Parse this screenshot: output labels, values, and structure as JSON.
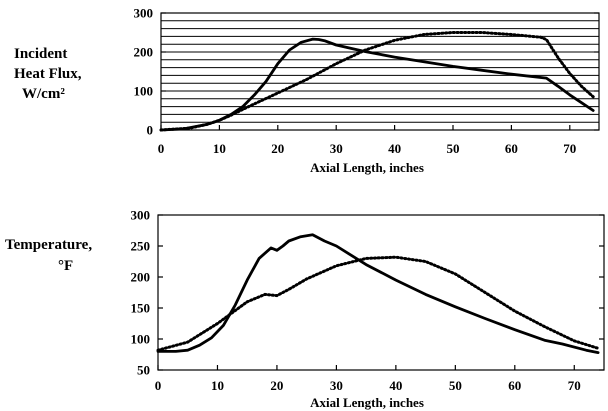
{
  "chart_data": [
    {
      "type": "line",
      "ylabel_lines": [
        "Incident",
        "Heat Flux,",
        "W/cm²"
      ],
      "xlabel": "Axial Length, inches",
      "xlim": [
        0,
        75
      ],
      "ylim": [
        0,
        300
      ],
      "xticks": [
        0,
        10,
        20,
        30,
        40,
        50,
        60,
        70
      ],
      "yticks": [
        0,
        100,
        200,
        300
      ],
      "grid": "horizontal lines every 20",
      "series": [
        {
          "style": "solid",
          "x": [
            0,
            4,
            8,
            10,
            12,
            14,
            16,
            18,
            20,
            22,
            24,
            26,
            27,
            28,
            30,
            35,
            40,
            45,
            50,
            55,
            60,
            66,
            68,
            70,
            72,
            74
          ],
          "y": [
            0,
            3,
            15,
            25,
            40,
            60,
            90,
            125,
            170,
            205,
            225,
            233,
            232,
            229,
            218,
            201,
            187,
            175,
            163,
            153,
            143,
            133,
            112,
            90,
            70,
            50
          ]
        },
        {
          "style": "dotted",
          "x": [
            0,
            5,
            8,
            10,
            12,
            15,
            20,
            25,
            30,
            35,
            40,
            45,
            50,
            55,
            60,
            65,
            66,
            68,
            70,
            72,
            74
          ],
          "y": [
            0,
            5,
            15,
            25,
            38,
            60,
            95,
            130,
            170,
            205,
            230,
            245,
            250,
            250,
            245,
            238,
            232,
            185,
            145,
            112,
            85
          ]
        }
      ]
    },
    {
      "type": "line",
      "ylabel_lines": [
        "Temperature,",
        "°F"
      ],
      "xlabel": "Axial Length, inches",
      "xlim": [
        0,
        75
      ],
      "ylim": [
        50,
        300
      ],
      "xticks": [
        0,
        10,
        20,
        30,
        40,
        50,
        60,
        70
      ],
      "yticks": [
        50,
        100,
        150,
        200,
        250,
        300
      ],
      "grid": "off",
      "series": [
        {
          "style": "solid",
          "x": [
            0,
            3,
            5,
            7,
            9,
            11,
            13,
            15,
            17,
            19,
            20,
            21,
            22,
            24,
            26,
            28,
            30,
            35,
            40,
            45,
            50,
            55,
            60,
            65,
            68,
            72,
            74
          ],
          "y": [
            80,
            80,
            82,
            90,
            102,
            122,
            155,
            195,
            230,
            247,
            243,
            250,
            258,
            265,
            268,
            258,
            250,
            220,
            195,
            172,
            152,
            133,
            115,
            98,
            92,
            82,
            78
          ]
        },
        {
          "style": "dotted",
          "x": [
            0,
            5,
            10,
            15,
            18,
            20,
            22,
            25,
            30,
            35,
            40,
            45,
            50,
            55,
            60,
            65,
            70,
            74
          ],
          "y": [
            82,
            95,
            125,
            160,
            172,
            170,
            180,
            197,
            218,
            230,
            232,
            225,
            205,
            175,
            145,
            120,
            97,
            85
          ]
        }
      ]
    }
  ]
}
